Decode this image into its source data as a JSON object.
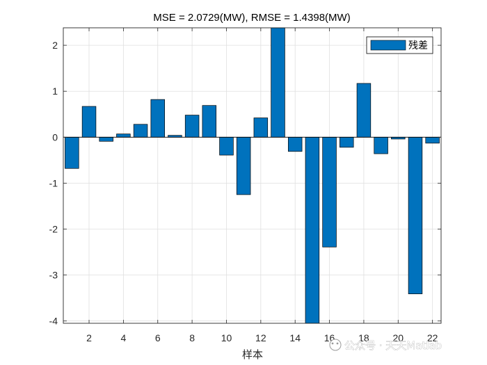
{
  "chart_data": {
    "type": "bar",
    "title": "MSE = 2.0729(MW), RMSE = 1.4398(MW)",
    "xlabel": "样本",
    "ylabel": "",
    "categories": [
      1,
      2,
      3,
      4,
      5,
      6,
      7,
      8,
      9,
      10,
      11,
      12,
      13,
      14,
      15,
      16,
      17,
      18,
      19,
      20,
      21,
      22
    ],
    "series": [
      {
        "name": "残差",
        "values": [
          -0.68,
          0.67,
          -0.09,
          0.07,
          0.28,
          0.82,
          0.04,
          0.48,
          0.69,
          -0.39,
          -1.25,
          0.42,
          2.38,
          -0.31,
          -4.1,
          -2.39,
          -0.22,
          1.17,
          -0.36,
          -0.04,
          -3.41,
          -0.13
        ]
      }
    ],
    "xlim": [
      0.5,
      22.5
    ],
    "ylim": [
      -4.05,
      2.38
    ],
    "xticks": [
      2,
      4,
      6,
      8,
      10,
      12,
      14,
      16,
      18,
      20,
      22
    ],
    "yticks": [
      -4,
      -3,
      -2,
      -1,
      0,
      1,
      2
    ],
    "grid": true,
    "legend_position": "top-right",
    "colors": {
      "bar": "#0072BD",
      "edge": "#000000",
      "grid": "#dfdfdf",
      "axis": "#262626"
    }
  },
  "watermark": {
    "text": "公众号 · 天天Matlab"
  }
}
